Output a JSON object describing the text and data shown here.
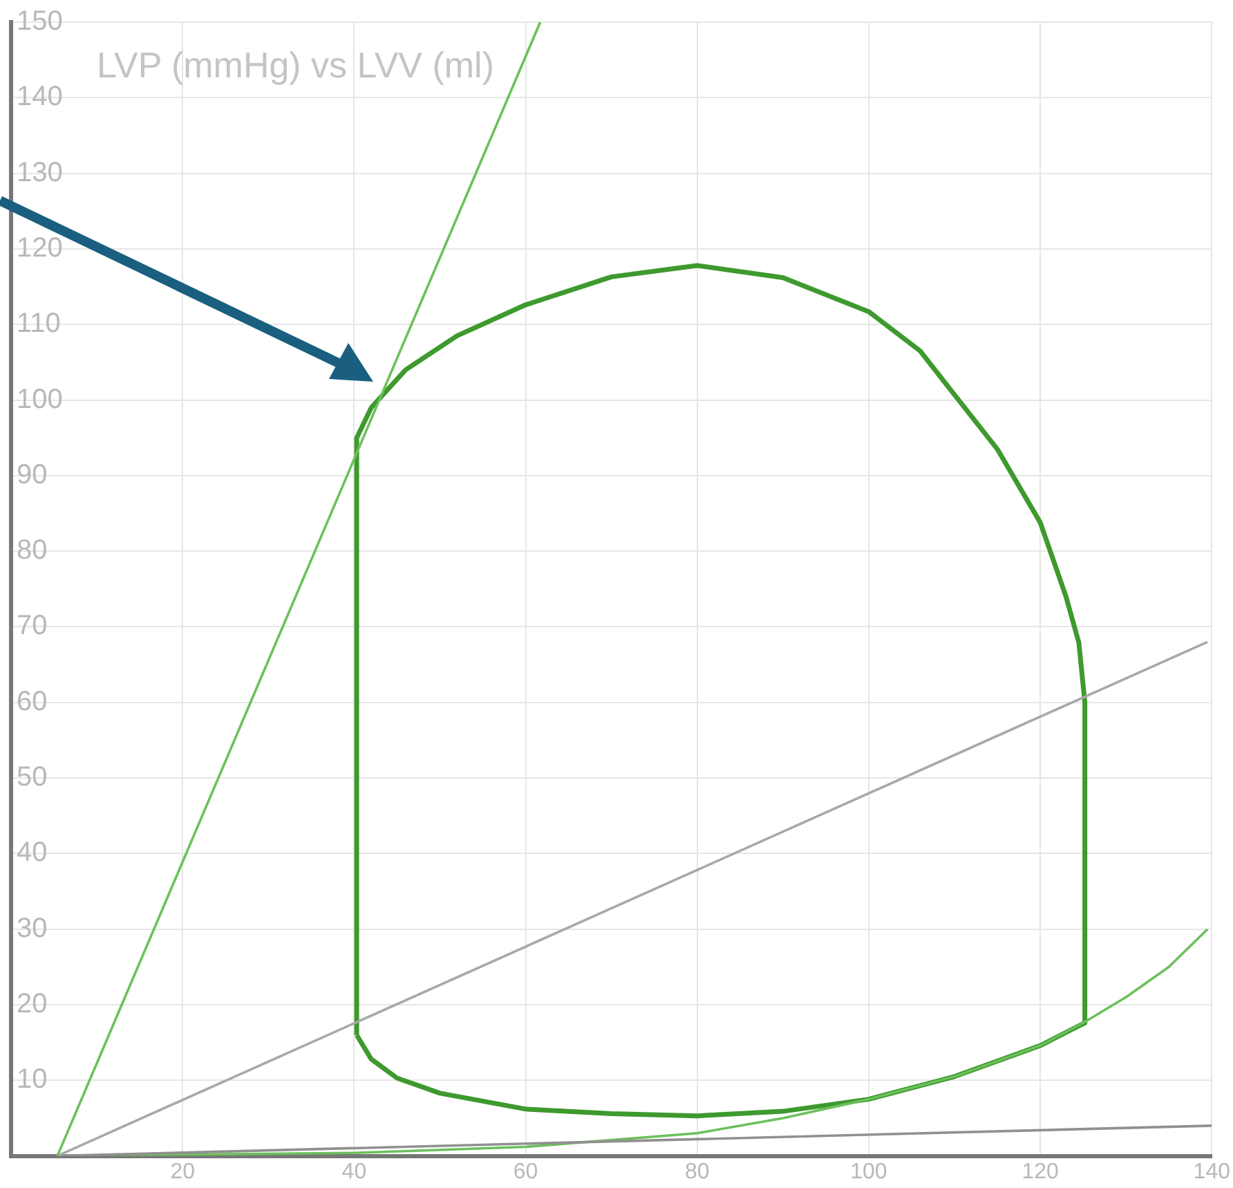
{
  "chart_data": {
    "type": "line",
    "title": "LVP (mmHg) vs LVV (ml)",
    "xlim": [
      0,
      140
    ],
    "xticks": [
      20,
      40,
      60,
      80,
      100,
      120,
      140
    ],
    "ylim": [
      0,
      150
    ],
    "yticks": [
      {
        "value": 0,
        "label": null
      },
      10,
      20,
      30,
      40,
      50,
      60,
      70,
      80,
      90,
      100,
      110,
      120,
      130,
      140,
      150
    ],
    "grid": true,
    "legend": false,
    "marker": "none",
    "line_style": "solid",
    "series": [
      {
        "color": "#6cc05c",
        "x": [
          5.4,
          61.7
        ],
        "values": [
          0,
          150
        ]
      },
      {
        "color": "#a8a8a8",
        "x": [
          5.4,
          139.5
        ],
        "values": [
          0,
          68
        ]
      },
      {
        "color": "#909090",
        "x": [
          5.4,
          140
        ],
        "values": [
          0,
          4
        ]
      },
      {
        "color": "#6cc05c",
        "x": [
          5.4,
          40,
          60,
          80,
          90,
          100,
          110,
          120,
          125,
          130,
          135,
          139.5
        ],
        "values": [
          0,
          0.4,
          1.2,
          3,
          5,
          7.5,
          10.5,
          14.6,
          17.6,
          21,
          25,
          30
        ]
      },
      {
        "color": "#3e9a2e",
        "x": [
          40.3,
          40.3,
          42,
          46,
          52,
          60,
          70,
          80,
          90,
          100,
          106,
          110,
          115,
          120,
          123,
          124.5,
          125.2,
          125.2
        ],
        "values": [
          16,
          95,
          99,
          104,
          108.5,
          112.6,
          116.3,
          117.8,
          116.2,
          111.7,
          106.5,
          100.7,
          93.5,
          83.8,
          74,
          67.9,
          60,
          17.6
        ]
      },
      {
        "color": "#3e9a2e",
        "x": [
          40.3,
          42,
          45,
          50,
          60,
          70,
          80,
          90,
          100,
          110,
          120,
          125.2
        ],
        "values": [
          16,
          12.8,
          10.3,
          8.3,
          6.2,
          5.6,
          5.3,
          5.9,
          7.5,
          10.5,
          14.6,
          17.6
        ]
      }
    ]
  }
}
